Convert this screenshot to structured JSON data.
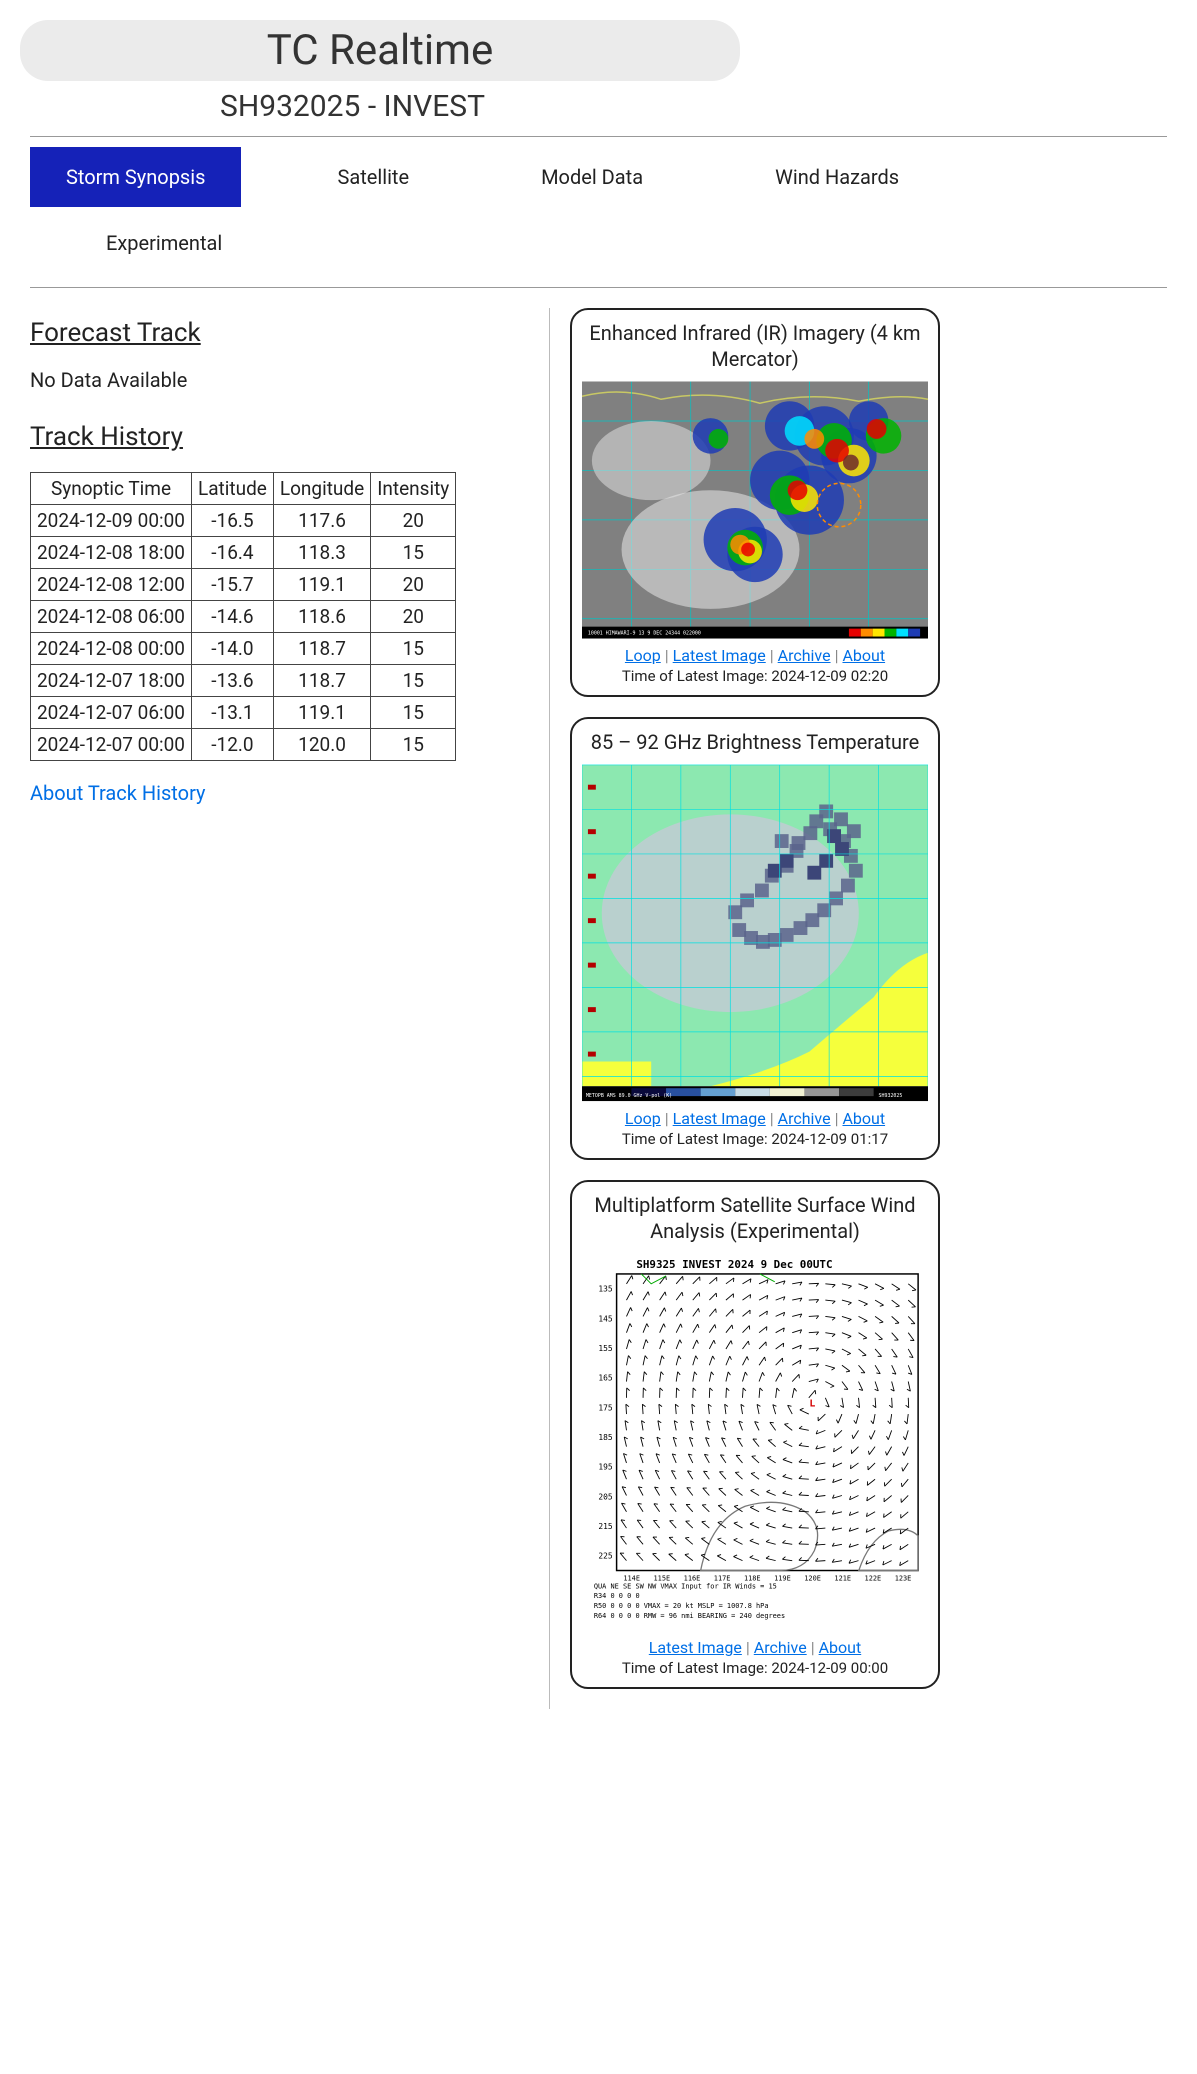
{
  "header": {
    "title": "TC Realtime",
    "subtitle": "SH932025 - INVEST"
  },
  "tabs": [
    {
      "label": "Storm Synopsis",
      "active": true
    },
    {
      "label": "Satellite",
      "active": false
    },
    {
      "label": "Model Data",
      "active": false
    },
    {
      "label": "Wind Hazards",
      "active": false
    },
    {
      "label": "Experimental",
      "active": false
    }
  ],
  "forecast": {
    "heading": "Forecast Track",
    "nodata": "No Data Available"
  },
  "track": {
    "heading": "Track History",
    "about_link": "About Track History",
    "columns": [
      "Synoptic Time",
      "Latitude",
      "Longitude",
      "Intensity"
    ],
    "rows": [
      [
        "2024-12-09 00:00",
        "-16.5",
        "117.6",
        "20"
      ],
      [
        "2024-12-08 18:00",
        "-16.4",
        "118.3",
        "15"
      ],
      [
        "2024-12-08 12:00",
        "-15.7",
        "119.1",
        "20"
      ],
      [
        "2024-12-08 06:00",
        "-14.6",
        "118.6",
        "20"
      ],
      [
        "2024-12-08 00:00",
        "-14.0",
        "118.7",
        "15"
      ],
      [
        "2024-12-07 18:00",
        "-13.6",
        "118.7",
        "15"
      ],
      [
        "2024-12-07 06:00",
        "-13.1",
        "119.1",
        "15"
      ],
      [
        "2024-12-07 00:00",
        "-12.0",
        "120.0",
        "15"
      ]
    ]
  },
  "cards": {
    "ir": {
      "title": "Enhanced Infrared (IR) Imagery (4 km Mercator)",
      "links": [
        "Loop",
        "Latest Image",
        "Archive",
        "About"
      ],
      "time_label": "Time of Latest Image: 2024-12-09 02:20",
      "svg": {
        "bg": "#808080",
        "coast": "#c8c864",
        "grid": "#00c4c4",
        "cloud_white": "#e8e8e8",
        "cloud_blue": "#1e3cb4",
        "cloud_cyan": "#00e0ff",
        "cloud_green": "#00b400",
        "cloud_yellow": "#ffe600",
        "cloud_orange": "#ff8c00",
        "cloud_red": "#e60000",
        "cloud_dark": "#6e2a2a",
        "footer": "#000000",
        "gridlines_v": [
          50,
          110,
          170,
          230,
          290
        ],
        "gridlines_h": [
          40,
          90,
          140,
          190,
          240
        ]
      }
    },
    "bt": {
      "title": "85 – 92 GHz Brightness Temperature",
      "links": [
        "Loop",
        "Latest Image",
        "Archive",
        "About"
      ],
      "time_label": "Time of Latest Image: 2024-12-09 01:17",
      "svg": {
        "land_yellow": "#f5ff3c",
        "sea_green": "#8ce8b0",
        "cloud_grey": "#c8c8d8",
        "cloud_dark": "#5a648c",
        "cloud_deep": "#3c4678",
        "grid": "#00e0e0",
        "marker": "#b40000",
        "footer": "#ffffff",
        "footer_bg": "#000000",
        "gridlines_v": [
          0,
          50,
          100,
          150,
          200,
          250,
          300,
          350
        ],
        "gridlines_h": [
          0,
          45,
          90,
          135,
          180,
          225,
          270,
          315
        ]
      }
    },
    "wind": {
      "title": "Multiplatform Satellite Surface Wind Analysis (Experimental)",
      "links": [
        "Latest Image",
        "Archive",
        "About"
      ],
      "time_label": "Time of Latest Image: 2024-12-09 00:00",
      "svg": {
        "bg": "#ffffff",
        "axis": "#000000",
        "barb": "#000000",
        "coast": "#787878",
        "title_text": "SH9325    INVEST    2024   9 Dec  00UTC",
        "ylabels": [
          "135",
          "145",
          "155",
          "165",
          "175",
          "185",
          "195",
          "205",
          "215",
          "225"
        ],
        "xlabels": [
          "114E",
          "115E",
          "116E",
          "117E",
          "118E",
          "119E",
          "120E",
          "121E",
          "122E",
          "123E"
        ],
        "footer_lines": [
          "QUA    NE   SE   SW   NW   VMAX Input for IR Winds =   15",
          "R34     0    0    0    0",
          "R50     0    0    0    0   VMAX =   20 kt MSLP = 1007.8 hPa",
          "R64     0    0    0    0   RMW =   96 nmi BEARING =  240 degrees"
        ]
      }
    }
  }
}
